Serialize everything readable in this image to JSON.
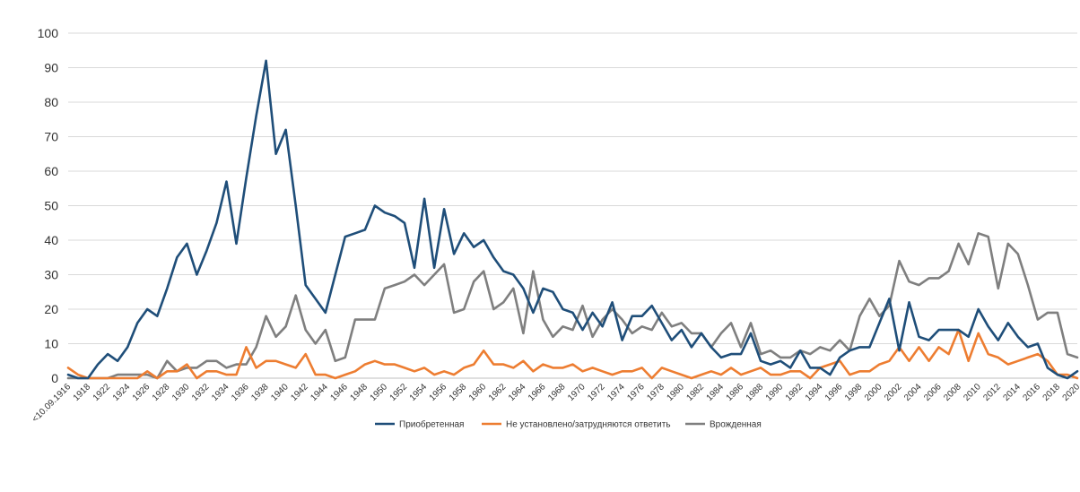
{
  "chart_data": {
    "type": "line",
    "title": "",
    "xlabel": "",
    "ylabel": "",
    "ylim": [
      0,
      100
    ],
    "yticks": [
      0,
      10,
      20,
      30,
      40,
      50,
      60,
      70,
      80,
      90,
      100
    ],
    "grid": true,
    "legend_position": "bottom",
    "x": [
      "<10.09.1916",
      "1916",
      "1918",
      "1921",
      "1922",
      "1923",
      "1924",
      "1925",
      "1926",
      "1927",
      "1928",
      "1929",
      "1930",
      "1931",
      "1932",
      "1933",
      "1934",
      "1935",
      "1936",
      "1937",
      "1938",
      "1939",
      "1940",
      "1941",
      "1942",
      "1943",
      "1944",
      "1945",
      "1946",
      "1947",
      "1948",
      "1949",
      "1950",
      "1951",
      "1952",
      "1953",
      "1954",
      "1955",
      "1956",
      "1957",
      "1958",
      "1959",
      "1960",
      "1961",
      "1962",
      "1963",
      "1964",
      "1965",
      "1966",
      "1967",
      "1968",
      "1969",
      "1970",
      "1971",
      "1972",
      "1973",
      "1974",
      "1975",
      "1976",
      "1977",
      "1978",
      "1979",
      "1980",
      "1981",
      "1982",
      "1983",
      "1984",
      "1985",
      "1986",
      "1987",
      "1988",
      "1989",
      "1990",
      "1991",
      "1992",
      "1993",
      "1994",
      "1995",
      "1996",
      "1997",
      "1998",
      "1999",
      "2000",
      "2001",
      "2002",
      "2003",
      "2004",
      "2005",
      "2006",
      "2007",
      "2008",
      "2009",
      "2010",
      "2011",
      "2012",
      "2013",
      "2014",
      "2015",
      "2016",
      "2017",
      "2018",
      "2019",
      "2020"
    ],
    "x_tick_labels": [
      "<10.09.1916",
      "1918",
      "1922",
      "1924",
      "1926",
      "1928",
      "1930",
      "1932",
      "1934",
      "1936",
      "1938",
      "1940",
      "1942",
      "1944",
      "1946",
      "1948",
      "1950",
      "1952",
      "1954",
      "1956",
      "1958",
      "1960",
      "1962",
      "1964",
      "1966",
      "1968",
      "1970",
      "1972",
      "1974",
      "1976",
      "1978",
      "1980",
      "1982",
      "1984",
      "1986",
      "1988",
      "1990",
      "1992",
      "1994",
      "1996",
      "1998",
      "2000",
      "2002",
      "2004",
      "2006",
      "2008",
      "2010",
      "2012",
      "2014",
      "2016",
      "2018",
      "2020"
    ],
    "series": [
      {
        "name": "Приобретенная",
        "color": "#1f4e79",
        "values": [
          1,
          0,
          0,
          4,
          7,
          5,
          9,
          16,
          20,
          18,
          26,
          35,
          39,
          30,
          37,
          45,
          57,
          39,
          58,
          76,
          92,
          65,
          72,
          50,
          27,
          23,
          19,
          30,
          41,
          42,
          43,
          50,
          48,
          47,
          45,
          32,
          52,
          32,
          49,
          36,
          42,
          38,
          40,
          35,
          31,
          30,
          26,
          19,
          26,
          25,
          20,
          19,
          14,
          19,
          15,
          22,
          11,
          18,
          18,
          21,
          16,
          11,
          14,
          9,
          13,
          9,
          6,
          7,
          7,
          13,
          5,
          4,
          5,
          3,
          8,
          3,
          3,
          1,
          6,
          8,
          9,
          9,
          16,
          23,
          8,
          22,
          12,
          11,
          14,
          14,
          14,
          12,
          20,
          15,
          11,
          16,
          12,
          9,
          10,
          3,
          1,
          0,
          2
        ]
      },
      {
        "name": "Не установлено/затрудняются ответить",
        "color": "#ed7d31",
        "values": [
          3,
          1,
          0,
          0,
          0,
          0,
          0,
          0,
          2,
          0,
          2,
          2,
          4,
          0,
          2,
          2,
          1,
          1,
          9,
          3,
          5,
          5,
          4,
          3,
          7,
          1,
          1,
          0,
          1,
          2,
          4,
          5,
          4,
          4,
          3,
          2,
          3,
          1,
          2,
          1,
          3,
          4,
          8,
          4,
          4,
          3,
          5,
          2,
          4,
          3,
          3,
          4,
          2,
          3,
          2,
          1,
          2,
          2,
          3,
          0,
          3,
          2,
          1,
          0,
          1,
          2,
          1,
          3,
          1,
          2,
          3,
          1,
          1,
          2,
          2,
          0,
          3,
          4,
          5,
          1,
          2,
          2,
          4,
          5,
          9,
          5,
          9,
          5,
          9,
          7,
          14,
          5,
          13,
          7,
          6,
          4,
          5,
          6,
          7,
          5,
          1,
          1,
          0
        ]
      },
      {
        "name": "Врожденная",
        "color": "#7f7f7f",
        "values": [
          0,
          0,
          0,
          0,
          0,
          1,
          1,
          1,
          1,
          0,
          5,
          2,
          3,
          3,
          5,
          5,
          3,
          4,
          4,
          9,
          18,
          12,
          15,
          24,
          14,
          10,
          14,
          5,
          6,
          17,
          17,
          17,
          26,
          27,
          28,
          30,
          27,
          30,
          33,
          19,
          20,
          28,
          31,
          20,
          22,
          26,
          13,
          31,
          17,
          12,
          15,
          14,
          21,
          12,
          17,
          20,
          17,
          13,
          15,
          14,
          19,
          15,
          16,
          13,
          13,
          9,
          13,
          16,
          9,
          16,
          7,
          8,
          6,
          6,
          8,
          7,
          9,
          8,
          11,
          8,
          18,
          23,
          18,
          21,
          34,
          28,
          27,
          29,
          29,
          31,
          39,
          33,
          42,
          41,
          26,
          39,
          36,
          27,
          17,
          19,
          19,
          7,
          6
        ]
      }
    ]
  }
}
